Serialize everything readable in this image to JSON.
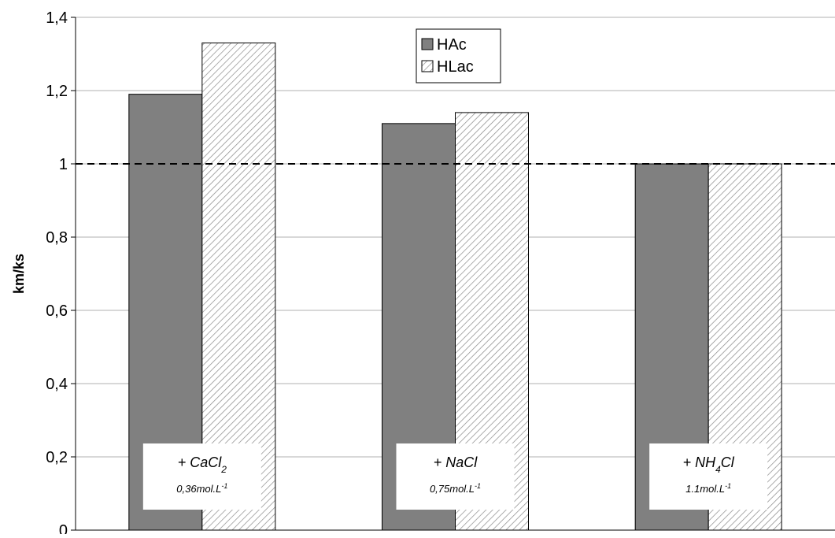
{
  "chart_data": {
    "type": "bar",
    "ylabel": "km/ks",
    "xlabel": "",
    "title": "",
    "ylim": [
      0,
      1.4
    ],
    "yticks": [
      "0",
      "0,2",
      "0,4",
      "0,6",
      "0,8",
      "1",
      "1,2",
      "1,4"
    ],
    "grid": true,
    "legend_position": "top-center",
    "reference_line": {
      "value": 1,
      "style": "dashed"
    },
    "categories": [
      {
        "pre": "+ CaCl",
        "sub": "2",
        "post": "",
        "conc": "0,36mol.L",
        "sup": "-1"
      },
      {
        "pre": "+ NaCl",
        "sub": "",
        "post": "",
        "conc": "0,75mol.L",
        "sup": "-1"
      },
      {
        "pre": "+ NH",
        "sub": "4",
        "post": "Cl",
        "conc": "1.1mol.L",
        "sup": "-1"
      }
    ],
    "series": [
      {
        "name": "HAc",
        "values": [
          1.19,
          1.11,
          1.0
        ],
        "fill": "solid",
        "color": "#808080"
      },
      {
        "name": "HLac",
        "values": [
          1.33,
          1.14,
          1.0
        ],
        "fill": "hatched",
        "color": "#ffffff"
      }
    ]
  }
}
